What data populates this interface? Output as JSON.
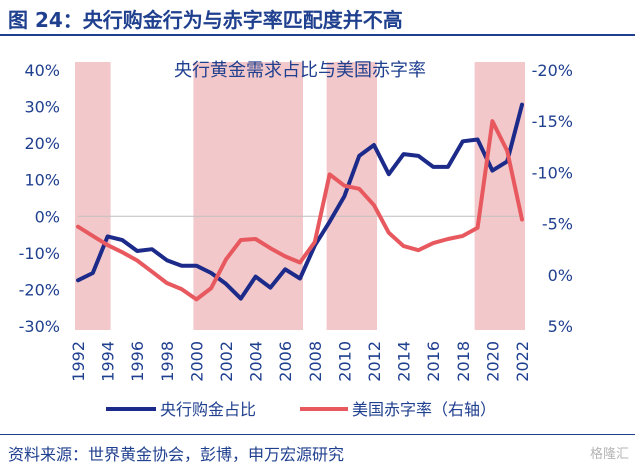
{
  "figure_title": "图 24：央行购金行为与赤字率匹配度并不高",
  "source": "资料来源：世界黄金协会，彭博，申万宏源研究",
  "watermark": "格隆汇",
  "colors": {
    "brand": "#1f3f8f",
    "gold_line": "#1c2a8a",
    "deficit_line": "#e8595f",
    "shade": "#f2c8ca",
    "axis_text": "#1f3f8f"
  },
  "chart_data": {
    "type": "line",
    "title": "央行黄金需求占比与美国赤字率",
    "x": [
      1992,
      1993,
      1994,
      1995,
      1996,
      1997,
      1998,
      1999,
      2000,
      2001,
      2002,
      2003,
      2004,
      2005,
      2006,
      2007,
      2008,
      2009,
      2010,
      2011,
      2012,
      2013,
      2014,
      2015,
      2016,
      2017,
      2018,
      2019,
      2020,
      2021,
      2022
    ],
    "xticks": [
      "1992",
      "1994",
      "1996",
      "1998",
      "2000",
      "2002",
      "2004",
      "2006",
      "2008",
      "2010",
      "2012",
      "2014",
      "2016",
      "2018",
      "2020",
      "2022"
    ],
    "left_axis": {
      "ylim": [
        -30,
        40
      ],
      "ticks": [
        "-30%",
        "-20%",
        "-10%",
        "0%",
        "10%",
        "20%",
        "30%",
        "40%"
      ],
      "tick_values": [
        -30,
        -20,
        -10,
        0,
        10,
        20,
        30,
        40
      ]
    },
    "right_axis": {
      "ylim": [
        5,
        -20
      ],
      "inverted": true,
      "ticks": [
        "5%",
        "0%",
        "-5%",
        "-10%",
        "-15%",
        "-20%"
      ],
      "tick_values": [
        5,
        0,
        -5,
        -10,
        -15,
        -20
      ]
    },
    "series": [
      {
        "name": "央行购金占比",
        "axis": "left",
        "values": [
          -17.5,
          -15.5,
          -5.5,
          -6.5,
          -9.5,
          -9,
          -12,
          -13.5,
          -13.5,
          -15.5,
          -18.5,
          -22.5,
          -16.5,
          -19.5,
          -14.5,
          -17,
          -8,
          -1.5,
          5.5,
          16.5,
          19.5,
          11.5,
          17,
          16.5,
          13.5,
          13.5,
          20.5,
          21,
          12.5,
          15,
          30.5
        ]
      },
      {
        "name": "美国赤字率（右轴）",
        "axis": "right",
        "values": [
          -4.7,
          -3.8,
          -2.9,
          -2.2,
          -1.4,
          -0.3,
          0.8,
          1.4,
          2.4,
          1.3,
          -1.5,
          -3.4,
          -3.5,
          -2.6,
          -1.8,
          -1.2,
          -3.2,
          -9.8,
          -8.7,
          -8.4,
          -6.8,
          -4.1,
          -2.8,
          -2.4,
          -3.1,
          -3.5,
          -3.8,
          -4.6,
          -15.0,
          -12.1,
          -5.4
        ]
      }
    ],
    "shaded_periods": [
      [
        1992,
        1994
      ],
      [
        2000,
        2007
      ],
      [
        2009,
        2012
      ],
      [
        2019,
        2022
      ]
    ],
    "legend_position": "bottom"
  }
}
